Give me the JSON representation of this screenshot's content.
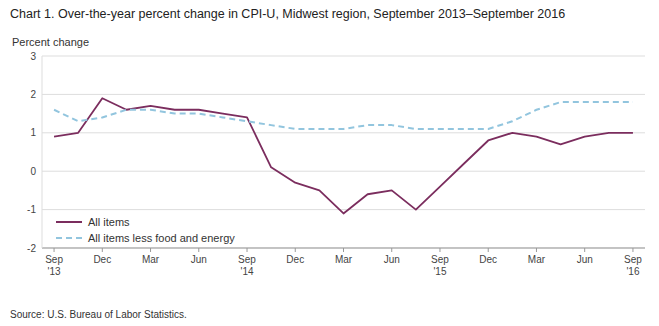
{
  "chart_data": {
    "type": "line",
    "title": "Chart 1. Over-the-year percent change in CPI-U, Midwest region, September 2013–September 2016",
    "y_label": "Percent change",
    "source": "Source: U.S. Bureau of Labor Statistics.",
    "categories": [
      "Sep\n'13",
      null,
      "Dec",
      null,
      "Mar",
      null,
      "Jun",
      null,
      "Sep\n'14",
      null,
      "Dec",
      null,
      "Mar",
      null,
      "Jun",
      null,
      "Sep\n'15",
      null,
      "Dec",
      null,
      "Mar",
      null,
      "Jun",
      null,
      "Sep\n'16"
    ],
    "series": [
      {
        "name": "All items",
        "color": "#7B2D5E",
        "line_style": "solid",
        "values": [
          0.9,
          1.0,
          1.9,
          1.6,
          1.7,
          1.6,
          1.6,
          1.5,
          1.4,
          0.1,
          -0.3,
          -0.5,
          -1.1,
          -0.6,
          -0.5,
          -1.0,
          -0.4,
          0.2,
          0.8,
          1.0,
          0.9,
          0.7,
          0.9,
          1.0,
          1.0
        ]
      },
      {
        "name": "All items less food and energy",
        "color": "#92C5DE",
        "line_style": "dashed",
        "values": [
          1.6,
          1.3,
          1.4,
          1.6,
          1.6,
          1.5,
          1.5,
          1.4,
          1.3,
          1.2,
          1.1,
          1.1,
          1.1,
          1.2,
          1.2,
          1.1,
          1.1,
          1.1,
          1.1,
          1.3,
          1.6,
          1.8,
          1.8,
          1.8,
          1.8
        ]
      }
    ],
    "ylim": [
      -2.0,
      3.0
    ],
    "yticks": [
      -2.0,
      -1.0,
      0.0,
      1.0,
      2.0,
      3.0
    ],
    "grid": true,
    "legend": "lower left"
  }
}
